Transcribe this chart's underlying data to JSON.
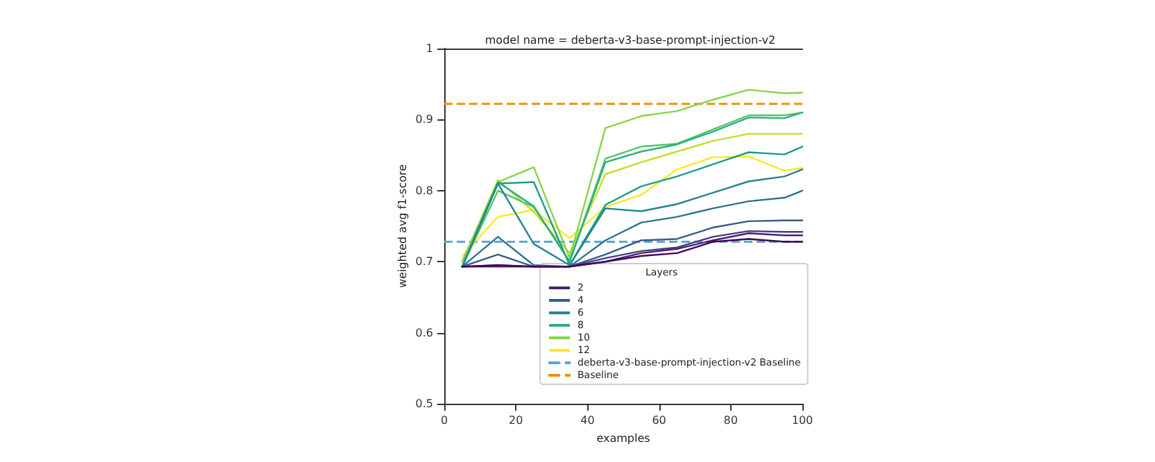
{
  "chart_data": {
    "type": "line",
    "title": "model name = deberta-v3-base-prompt-injection-v2",
    "xlabel": "examples",
    "ylabel": "weighted avg f1-score",
    "legend_title": "Layers",
    "legend": "bottom",
    "grid": false,
    "marker": "none",
    "line_style": "solid",
    "x": [
      5,
      15,
      25,
      35,
      45,
      55,
      65,
      75,
      85,
      95,
      100
    ],
    "xlim": [
      0,
      100
    ],
    "xticks": [
      0,
      20,
      40,
      60,
      80,
      100
    ],
    "ylim": [
      0.5,
      1.0
    ],
    "yticks": [
      0.5,
      0.6,
      0.7,
      0.8,
      0.9,
      1.0
    ],
    "series": [
      {
        "color": "#440154",
        "values": [
          0.693,
          0.695,
          0.693,
          0.693,
          0.7,
          0.708,
          0.712,
          0.728,
          0.732,
          0.728,
          0.728
        ]
      },
      {
        "name": "2",
        "color": "#482173",
        "values": [
          0.693,
          0.693,
          0.693,
          0.693,
          0.7,
          0.712,
          0.718,
          0.73,
          0.74,
          0.737,
          0.737
        ]
      },
      {
        "color": "#433e85",
        "values": [
          0.693,
          0.695,
          0.693,
          0.693,
          0.705,
          0.715,
          0.72,
          0.735,
          0.743,
          0.742,
          0.742
        ]
      },
      {
        "name": "4",
        "color": "#38588c",
        "values": [
          0.693,
          0.71,
          0.693,
          0.693,
          0.71,
          0.73,
          0.732,
          0.748,
          0.757,
          0.758,
          0.758
        ]
      },
      {
        "color": "#2d708e",
        "values": [
          0.693,
          0.735,
          0.695,
          0.693,
          0.73,
          0.755,
          0.763,
          0.775,
          0.785,
          0.79,
          0.8
        ]
      },
      {
        "name": "6",
        "color": "#25858e",
        "values": [
          0.693,
          0.81,
          0.725,
          0.695,
          0.775,
          0.771,
          0.781,
          0.797,
          0.813,
          0.82,
          0.83
        ]
      },
      {
        "color": "#1e9b8a",
        "values": [
          0.693,
          0.81,
          0.812,
          0.695,
          0.78,
          0.806,
          0.82,
          0.837,
          0.854,
          0.851,
          0.862
        ]
      },
      {
        "name": "8",
        "color": "#2ab07f",
        "values": [
          0.693,
          0.812,
          0.778,
          0.7,
          0.84,
          0.855,
          0.865,
          0.883,
          0.903,
          0.902,
          0.91
        ]
      },
      {
        "color": "#52c569",
        "values": [
          0.693,
          0.8,
          0.777,
          0.7,
          0.845,
          0.862,
          0.866,
          0.886,
          0.906,
          0.906,
          0.91
        ]
      },
      {
        "name": "10",
        "color": "#86d549",
        "values": [
          0.7,
          0.812,
          0.833,
          0.705,
          0.888,
          0.905,
          0.912,
          0.928,
          0.942,
          0.937,
          0.938
        ]
      },
      {
        "color": "#c2df23",
        "values": [
          0.7,
          0.815,
          0.77,
          0.712,
          0.823,
          0.84,
          0.855,
          0.87,
          0.88,
          0.88,
          0.88
        ]
      },
      {
        "name": "12",
        "color": "#fde725",
        "values": [
          0.708,
          0.763,
          0.773,
          0.733,
          0.777,
          0.794,
          0.83,
          0.847,
          0.848,
          0.828,
          0.832
        ]
      }
    ],
    "ref_lines": [
      {
        "axis": "y",
        "value": 0.728,
        "label": "deberta-v3-base-prompt-injection-v2 Baseline",
        "color": "#5aa7d6",
        "line_style": "dashed"
      },
      {
        "axis": "y",
        "value": 0.922,
        "label": "Baseline",
        "color": "#f0900a",
        "line_style": "dashed"
      }
    ]
  }
}
